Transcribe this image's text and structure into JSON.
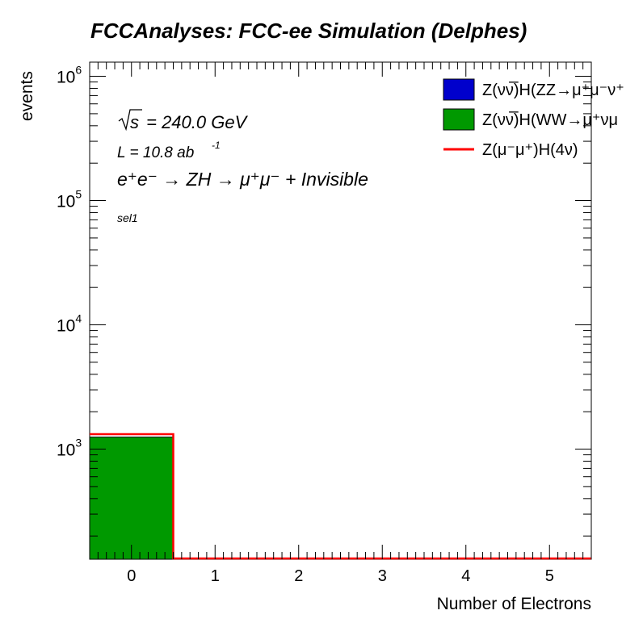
{
  "chart_data": {
    "type": "bar",
    "title": "FCCAnalyses: FCC-ee Simulation (Delphes)",
    "xlabel": "Number of Electrons",
    "ylabel": "events",
    "x_ticks": [
      "0",
      "1",
      "2",
      "3",
      "4",
      "5"
    ],
    "xlim": [
      -0.5,
      5.5
    ],
    "ylim": [
      130,
      1300000
    ],
    "y_scale": "log",
    "y_ticks": [
      {
        "value": 1000,
        "base": "10",
        "exp": "3"
      },
      {
        "value": 10000,
        "base": "10",
        "exp": "4"
      },
      {
        "value": 100000,
        "base": "10",
        "exp": "5"
      },
      {
        "value": 1000000,
        "base": "10",
        "exp": "6"
      }
    ],
    "bin_edges": [
      -0.5,
      0.5,
      1.5,
      2.5,
      3.5,
      4.5,
      5.5
    ],
    "stacked_series": [
      {
        "name": "Z(νν̅)H(ZZ→μ⁺μ⁻ν⁺",
        "color": "#0000cc",
        "values": [
          0,
          0,
          0,
          0,
          0,
          0
        ]
      },
      {
        "name": "Z(νν̅)H(WW→μ⁺νμ",
        "color": "#009900",
        "values": [
          1250,
          0,
          0,
          0,
          0,
          0
        ]
      }
    ],
    "line_series": [
      {
        "name": "Z(μ⁻μ⁺)H(4ν)",
        "color": "#ff0000",
        "values": [
          1320,
          0,
          0,
          0,
          0,
          0
        ]
      }
    ],
    "legend_position": "top-right",
    "annotations": {
      "sqrt_s": "s",
      "energy": " = 240.0 GeV",
      "lumi": "L = 10.8 ab",
      "lumi_exp": "-1",
      "process": "e⁺e⁻ → ZH → μ⁺μ⁻ + Invisible",
      "selection": "sel1"
    }
  }
}
